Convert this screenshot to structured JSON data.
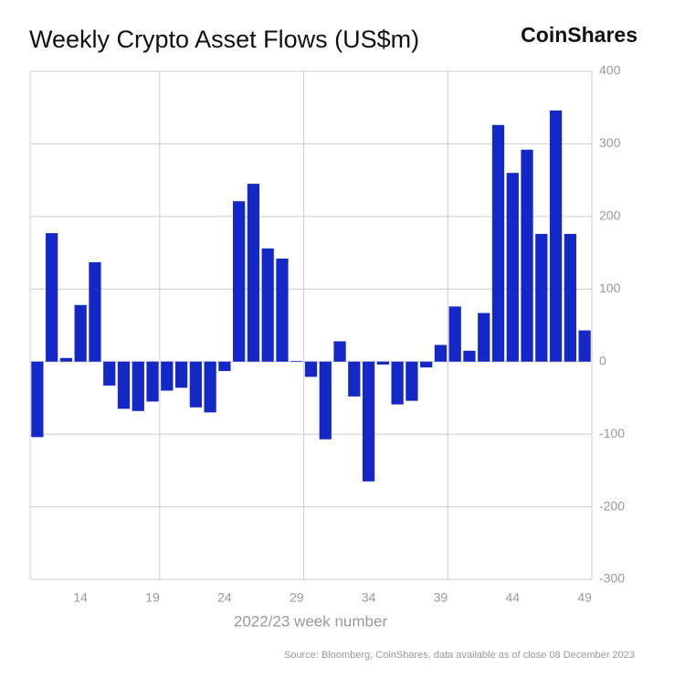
{
  "chart_data": {
    "type": "bar",
    "title": "Weekly Crypto Asset Flows (US$m)",
    "brand": "CoinShares",
    "x_label": "2022/23 week number",
    "source": "Source: Bloomberg, CoinShares, data available as of close 08 December 2023",
    "x": [
      11,
      12,
      13,
      14,
      15,
      16,
      17,
      18,
      19,
      20,
      21,
      22,
      23,
      24,
      25,
      26,
      27,
      28,
      29,
      30,
      31,
      32,
      33,
      34,
      35,
      36,
      37,
      38,
      39,
      40,
      41,
      42,
      43,
      44,
      45,
      46,
      47,
      48,
      49
    ],
    "values": [
      -104,
      177,
      5,
      78,
      137,
      -33,
      -65,
      -68,
      -55,
      -40,
      -36,
      -63,
      -70,
      -13,
      221,
      245,
      156,
      142,
      1,
      -21,
      -107,
      28,
      -48,
      -165,
      -4,
      -59,
      -54,
      -8,
      23,
      76,
      15,
      67,
      326,
      260,
      292,
      176,
      346,
      176,
      43
    ],
    "color": "#1428c8",
    "xlim": [
      10.5,
      49.5
    ],
    "xticks": [
      14,
      19,
      24,
      29,
      34,
      39,
      44,
      49
    ],
    "xgrid": [
      19.5,
      29.5,
      39.5
    ],
    "ylim": [
      -300,
      400
    ],
    "yticks": [
      -300,
      -200,
      -100,
      0,
      100,
      200,
      300,
      400
    ],
    "grid": true
  }
}
